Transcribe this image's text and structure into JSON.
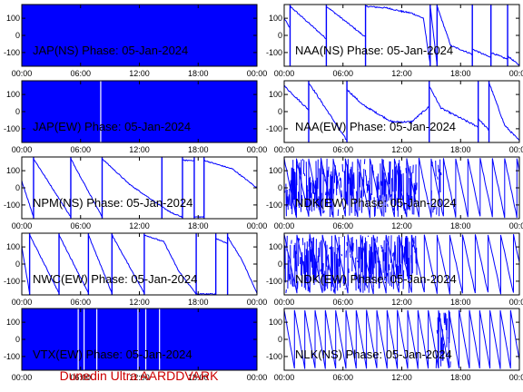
{
  "footer": "Dunedin Ultra AARDDVARK",
  "colors": {
    "trace": "#0000ff",
    "axis": "#000000",
    "footer": "#cc0000"
  },
  "chart_data": [
    {
      "type": "line",
      "title": "JAP(NS) Phase: 05-Jan-2024",
      "xticks": [
        "00:00",
        "06:00",
        "12:00",
        "18:00",
        "00:00"
      ],
      "yticks": [
        100,
        0,
        -100
      ],
      "ylim": [
        -180,
        180
      ],
      "xlim_hours": [
        0,
        24
      ],
      "style": "saturated",
      "gaps_hours": [],
      "segments": []
    },
    {
      "type": "line",
      "title": "NAA(NS) Phase: 05-Jan-2024",
      "xticks": [
        "00:00",
        "06:00",
        "12:00",
        "18:00",
        "00:00"
      ],
      "yticks": [
        100,
        0,
        -100
      ],
      "ylim": [
        -180,
        180
      ],
      "xlim_hours": [
        0,
        24
      ],
      "style": "segments",
      "noise": 8,
      "jumps_hours": [
        0.6,
        4.3,
        8.3,
        14.9,
        15.6,
        19.2,
        21.1,
        22.8
      ],
      "segments": [
        {
          "x": [
            0.0,
            0.6
          ],
          "y": [
            100,
            40
          ]
        },
        {
          "x": [
            0.6,
            4.3
          ],
          "y": [
            170,
            -20
          ]
        },
        {
          "x": [
            4.3,
            8.3
          ],
          "y": [
            170,
            -10
          ]
        },
        {
          "x": [
            8.3,
            10.5,
            12.0,
            13.0
          ],
          "y": [
            170,
            160,
            140,
            130
          ]
        },
        {
          "x": [
            13.0,
            14.2,
            14.9
          ],
          "y": [
            130,
            100,
            -170
          ]
        },
        {
          "x": [
            14.9,
            15.6
          ],
          "y": [
            175,
            -175
          ]
        },
        {
          "x": [
            15.6,
            17.0,
            19.2
          ],
          "y": [
            170,
            -60,
            -110
          ]
        },
        {
          "x": [
            19.2,
            21.1
          ],
          "y": [
            -80,
            -130
          ]
        },
        {
          "x": [
            21.1,
            22.8
          ],
          "y": [
            -100,
            -140
          ]
        },
        {
          "x": [
            22.8,
            24.0
          ],
          "y": [
            -120,
            -175
          ]
        }
      ]
    },
    {
      "type": "line",
      "title": "JAP(EW) Phase: 05-Jan-2024",
      "xticks": [
        "00:00",
        "06:00",
        "12:00",
        "18:00",
        "00:00"
      ],
      "yticks": [
        100,
        0,
        -100
      ],
      "ylim": [
        -180,
        180
      ],
      "xlim_hours": [
        0,
        24
      ],
      "style": "saturated",
      "gaps_hours": [
        8.0
      ],
      "segments": []
    },
    {
      "type": "line",
      "title": "NAA(EW) Phase: 05-Jan-2024",
      "xticks": [
        "00:00",
        "06:00",
        "12:00",
        "18:00",
        "00:00"
      ],
      "yticks": [
        100,
        0,
        -100
      ],
      "ylim": [
        -180,
        180
      ],
      "xlim_hours": [
        0,
        24
      ],
      "style": "segments",
      "noise": 10,
      "jumps_hours": [
        2.5,
        6.4,
        14.8,
        19.8,
        20.9
      ],
      "segments": [
        {
          "x": [
            0.0,
            2.5
          ],
          "y": [
            150,
            10
          ]
        },
        {
          "x": [
            2.5,
            6.4
          ],
          "y": [
            170,
            -170
          ]
        },
        {
          "x": [
            6.4,
            8.0,
            11.0,
            13.0,
            14.8
          ],
          "y": [
            130,
            40,
            -60,
            -60,
            30
          ]
        },
        {
          "x": [
            14.8,
            16.0,
            19.8
          ],
          "y": [
            150,
            20,
            -90
          ]
        },
        {
          "x": [
            19.8,
            20.9
          ],
          "y": [
            -40,
            -110
          ]
        },
        {
          "x": [
            20.9,
            22.5,
            24.0
          ],
          "y": [
            170,
            -80,
            -170
          ]
        }
      ]
    },
    {
      "type": "line",
      "title": "NPM(NS) Phase: 05-Jan-2024",
      "xticks": [
        "00:00",
        "06:00",
        "12:00",
        "18:00",
        "00:00"
      ],
      "yticks": [
        100,
        0,
        -100
      ],
      "ylim": [
        -180,
        180
      ],
      "xlim_hours": [
        0,
        24
      ],
      "style": "segments",
      "noise": 6,
      "jumps_hours": [
        1.2,
        5.0,
        8.2,
        14.3,
        16.4,
        17.6,
        18.6
      ],
      "segments": [
        {
          "x": [
            0.0,
            1.2
          ],
          "y": [
            40,
            -170
          ]
        },
        {
          "x": [
            1.2,
            5.0
          ],
          "y": [
            170,
            -170
          ]
        },
        {
          "x": [
            5.0,
            8.2
          ],
          "y": [
            170,
            -170
          ]
        },
        {
          "x": [
            8.2,
            11.0,
            14.3
          ],
          "y": [
            170,
            20,
            -110
          ]
        },
        {
          "x": [
            14.3,
            15.4,
            16.4
          ],
          "y": [
            -110,
            -150,
            -170
          ]
        },
        {
          "x": [
            16.4,
            17.6
          ],
          "y": [
            160,
            160
          ]
        },
        {
          "x": [
            17.6,
            18.6
          ],
          "y": [
            -170,
            -170
          ]
        },
        {
          "x": [
            18.6,
            21.5,
            24.0
          ],
          "y": [
            160,
            110,
            0
          ]
        }
      ]
    },
    {
      "type": "line",
      "title": "NDK(EW) Phase: 05-Jan-2024",
      "xticks": [
        "00:00",
        "06:00",
        "12:00",
        "18:00",
        "00:00"
      ],
      "yticks": [
        100,
        0,
        -100
      ],
      "ylim": [
        -180,
        180
      ],
      "xlim_hours": [
        0,
        24
      ],
      "style": "sawtooth",
      "noise": 10,
      "period_hours": 1.25,
      "dense_ranges_hours": [
        [
          0.0,
          13.5
        ],
        [
          15.0,
          16.0
        ]
      ]
    },
    {
      "type": "line",
      "title": "NWC(EW) Phase: 05-Jan-2024",
      "xticks": [
        "00:00",
        "06:00",
        "12:00",
        "18:00",
        "00:00"
      ],
      "yticks": [
        100,
        0,
        -100
      ],
      "ylim": [
        -180,
        180
      ],
      "xlim_hours": [
        0,
        24
      ],
      "style": "segments",
      "noise": 6,
      "jumps_hours": [
        0.8,
        3.8,
        6.8,
        9.2,
        12.5,
        17.8,
        19.8,
        21.0
      ],
      "segments": [
        {
          "x": [
            0.0,
            0.8
          ],
          "y": [
            100,
            -170
          ]
        },
        {
          "x": [
            0.8,
            3.8
          ],
          "y": [
            170,
            -170
          ]
        },
        {
          "x": [
            3.8,
            6.8
          ],
          "y": [
            170,
            -170
          ]
        },
        {
          "x": [
            6.8,
            9.2
          ],
          "y": [
            170,
            -170
          ]
        },
        {
          "x": [
            9.2,
            12.5
          ],
          "y": [
            170,
            -170
          ]
        },
        {
          "x": [
            12.5,
            14.5,
            16.0,
            17.8
          ],
          "y": [
            170,
            130,
            -40,
            -175
          ]
        },
        {
          "x": [
            17.8,
            19.8
          ],
          "y": [
            -175,
            -175
          ]
        },
        {
          "x": [
            19.8,
            21.0
          ],
          "y": [
            150,
            120
          ]
        },
        {
          "x": [
            21.0,
            22.5,
            24.0
          ],
          "y": [
            160,
            20,
            -170
          ]
        }
      ]
    },
    {
      "type": "line",
      "title": "NDK(EW) Phase: 05-Jan-2024",
      "xticks": [
        "00:00",
        "06:00",
        "12:00",
        "18:00",
        "00:00"
      ],
      "yticks": [
        100,
        0,
        -100
      ],
      "ylim": [
        -180,
        180
      ],
      "xlim_hours": [
        0,
        24
      ],
      "style": "sawtooth",
      "noise": 12,
      "period_hours": 1.3,
      "dense_ranges_hours": [
        [
          0.0,
          13.5
        ]
      ]
    },
    {
      "type": "line",
      "title": "VTX(EW) Phase: 05-Jan-2024",
      "xticks": [
        "00:00",
        "06:00",
        "12:00",
        "18:00",
        "00:00"
      ],
      "yticks": [
        100,
        0,
        -100
      ],
      "ylim": [
        -180,
        180
      ],
      "xlim_hours": [
        0,
        24
      ],
      "style": "saturated",
      "gaps_hours": [
        5.7,
        6.3,
        7.6,
        11.8,
        12.6,
        14.0
      ],
      "segments": []
    },
    {
      "type": "line",
      "title": "NLK(NS) Phase: 05-Jan-2024",
      "xticks": [
        "00:00",
        "06:00",
        "12:00",
        "18:00",
        "00:00"
      ],
      "yticks": [
        100,
        0,
        -100
      ],
      "ylim": [
        -180,
        180
      ],
      "xlim_hours": [
        0,
        24
      ],
      "style": "sawtooth",
      "noise": 5,
      "period_hours": 1.05,
      "dense_ranges_hours": [
        [
          15.5,
          17.0
        ]
      ]
    }
  ]
}
